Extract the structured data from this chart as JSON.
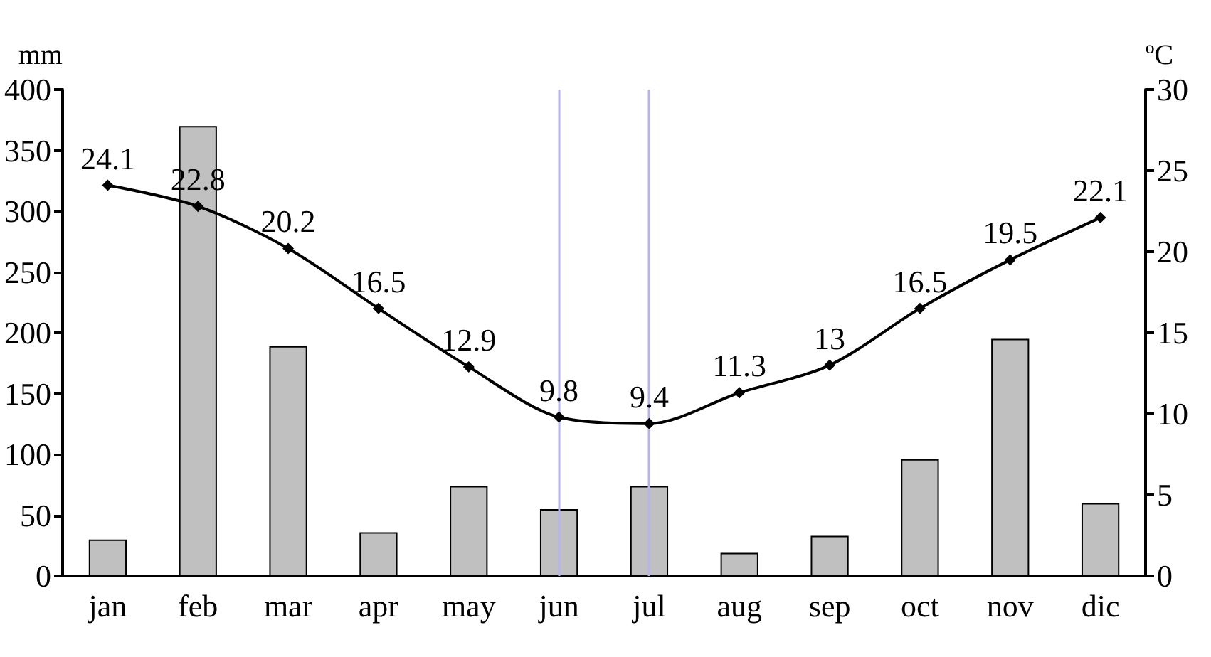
{
  "chart_data": {
    "type": "bar",
    "ylabel": "mm",
    "y2label": "ºC",
    "categories": [
      "jan",
      "feb",
      "mar",
      "apr",
      "may",
      "jun",
      "jul",
      "aug",
      "sep",
      "oct",
      "nov",
      "dic"
    ],
    "series": [
      {
        "color": "#c0c0c0",
        "values": [
          30,
          370,
          189,
          36,
          74,
          55,
          74,
          19,
          33,
          96,
          195,
          60
        ]
      },
      {
        "type": "line",
        "axis": "y2",
        "color": "#000000",
        "marker": "diamond",
        "values": [
          24.1,
          22.8,
          20.2,
          16.5,
          12.9,
          9.8,
          9.4,
          11.3,
          13,
          16.5,
          19.5,
          22.1
        ],
        "value_labels": [
          "24.1",
          "22.8",
          "20.2",
          "16.5",
          "12.9",
          "9.8",
          "9.4",
          "11.3",
          "13",
          "16.5",
          "19.5",
          "22.1"
        ]
      }
    ],
    "ylim": [
      0,
      400
    ],
    "yticks": [
      0,
      50,
      100,
      150,
      200,
      250,
      300,
      350,
      400
    ],
    "y2lim": [
      0,
      30
    ],
    "y2ticks": [
      0,
      5,
      10,
      15,
      20,
      25,
      30
    ],
    "ref_lines": [
      {
        "axis": "x",
        "value": "jun",
        "color": "#b4b4f0"
      },
      {
        "axis": "x",
        "value": "jul",
        "color": "#b4b4f0"
      }
    ],
    "grid": false
  }
}
